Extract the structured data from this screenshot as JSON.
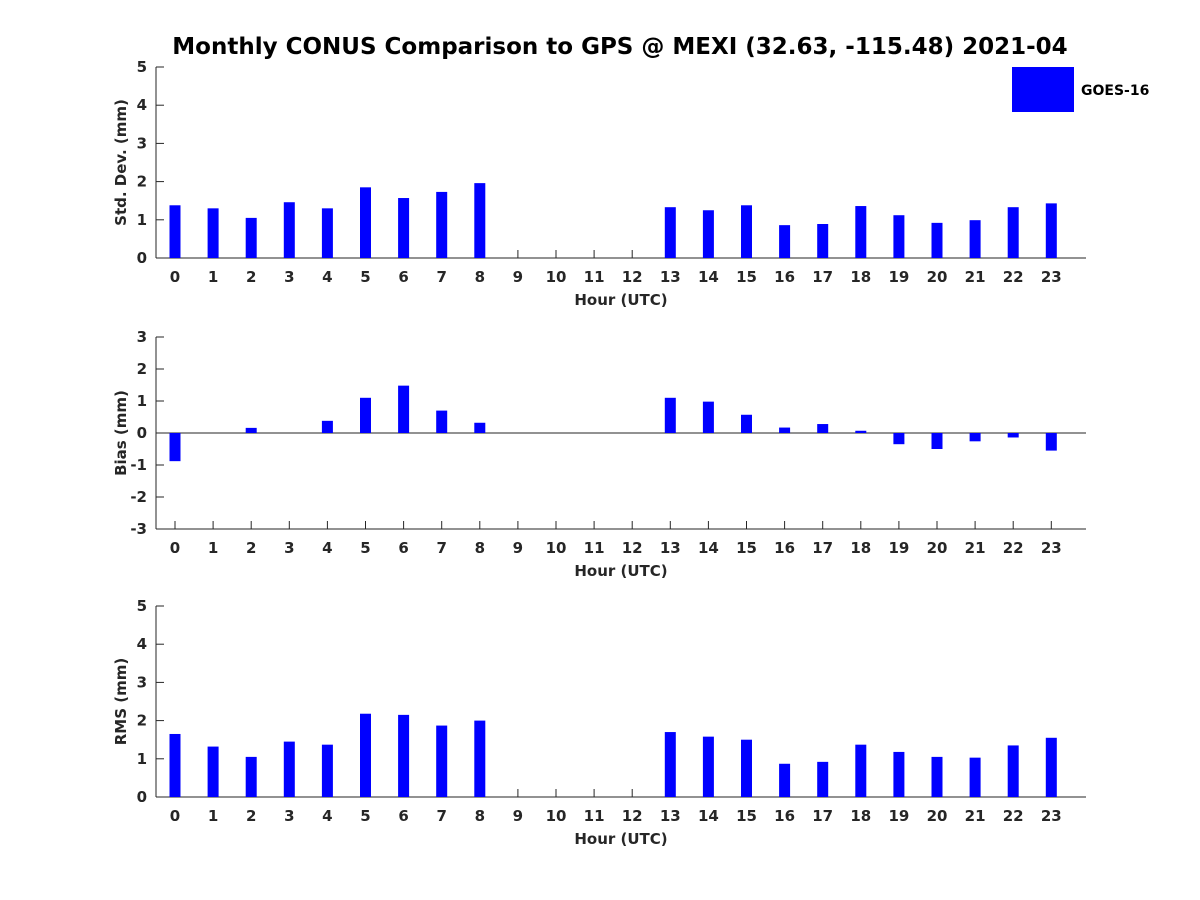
{
  "title": "Monthly CONUS Comparison to GPS @ MEXI (32.63, -115.48) 2021-04",
  "legend": {
    "label": "GOES-16",
    "color": "#0000ff"
  },
  "chart_data": [
    {
      "type": "bar",
      "title": "Monthly CONUS Comparison to GPS @ MEXI (32.63, -115.48) 2021-04",
      "xlabel": "Hour (UTC)",
      "ylabel": "Std. Dev. (mm)",
      "ylim": [
        0,
        5
      ],
      "yticks": [
        0,
        1,
        2,
        3,
        4,
        5
      ],
      "categories": [
        "0",
        "1",
        "2",
        "3",
        "4",
        "5",
        "6",
        "7",
        "8",
        "9",
        "10",
        "11",
        "12",
        "13",
        "14",
        "15",
        "16",
        "17",
        "18",
        "19",
        "20",
        "21",
        "22",
        "23"
      ],
      "series": [
        {
          "name": "GOES-16",
          "color": "#0000ff",
          "values": [
            1.38,
            1.3,
            1.05,
            1.46,
            1.3,
            1.85,
            1.57,
            1.73,
            1.96,
            null,
            null,
            null,
            null,
            1.33,
            1.25,
            1.38,
            0.86,
            0.89,
            1.36,
            1.12,
            0.92,
            0.99,
            1.33,
            1.43
          ]
        }
      ],
      "legend": "top-right",
      "grid": false
    },
    {
      "type": "bar",
      "xlabel": "Hour (UTC)",
      "ylabel": "Bias (mm)",
      "ylim": [
        -3,
        3
      ],
      "yticks": [
        -3,
        -2,
        -1,
        0,
        1,
        2,
        3
      ],
      "categories": [
        "0",
        "1",
        "2",
        "3",
        "4",
        "5",
        "6",
        "7",
        "8",
        "9",
        "10",
        "11",
        "12",
        "13",
        "14",
        "15",
        "16",
        "17",
        "18",
        "19",
        "20",
        "21",
        "22",
        "23"
      ],
      "series": [
        {
          "name": "GOES-16",
          "color": "#0000ff",
          "values": [
            -0.88,
            0,
            0.16,
            0,
            0.38,
            1.1,
            1.48,
            0.7,
            0.32,
            null,
            null,
            null,
            null,
            1.1,
            0.98,
            0.57,
            0.17,
            0.28,
            0.07,
            -0.35,
            -0.5,
            -0.26,
            -0.14,
            -0.55
          ]
        }
      ],
      "grid": false
    },
    {
      "type": "bar",
      "xlabel": "Hour (UTC)",
      "ylabel": "RMS (mm)",
      "ylim": [
        0,
        5
      ],
      "yticks": [
        0,
        1,
        2,
        3,
        4,
        5
      ],
      "categories": [
        "0",
        "1",
        "2",
        "3",
        "4",
        "5",
        "6",
        "7",
        "8",
        "9",
        "10",
        "11",
        "12",
        "13",
        "14",
        "15",
        "16",
        "17",
        "18",
        "19",
        "20",
        "21",
        "22",
        "23"
      ],
      "series": [
        {
          "name": "GOES-16",
          "color": "#0000ff",
          "values": [
            1.65,
            1.32,
            1.05,
            1.45,
            1.37,
            2.18,
            2.15,
            1.87,
            2.0,
            null,
            null,
            null,
            null,
            1.7,
            1.58,
            1.5,
            0.87,
            0.92,
            1.37,
            1.18,
            1.05,
            1.03,
            1.35,
            1.55
          ]
        }
      ],
      "grid": false
    }
  ]
}
